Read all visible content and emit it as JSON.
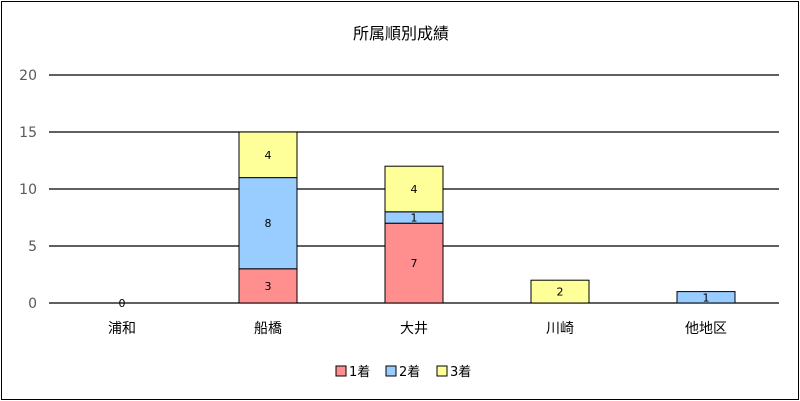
{
  "chart_data": {
    "type": "bar",
    "stacked": true,
    "title": "所属順別成績",
    "categories": [
      "浦和",
      "船橋",
      "大井",
      "川崎",
      "他地区"
    ],
    "series": [
      {
        "name": "1着",
        "values": [
          0,
          3,
          7,
          0,
          0
        ],
        "color": "#ff8f8f"
      },
      {
        "name": "2着",
        "values": [
          0,
          8,
          1,
          0,
          1
        ],
        "color": "#99ccff"
      },
      {
        "name": "3着",
        "values": [
          0,
          4,
          4,
          2,
          0
        ],
        "color": "#ffff99"
      }
    ],
    "ylim": [
      0,
      20
    ],
    "yticks": [
      0,
      5,
      10,
      15,
      20
    ],
    "grid": true,
    "legend_position": "bottom",
    "zero_label": "0"
  }
}
